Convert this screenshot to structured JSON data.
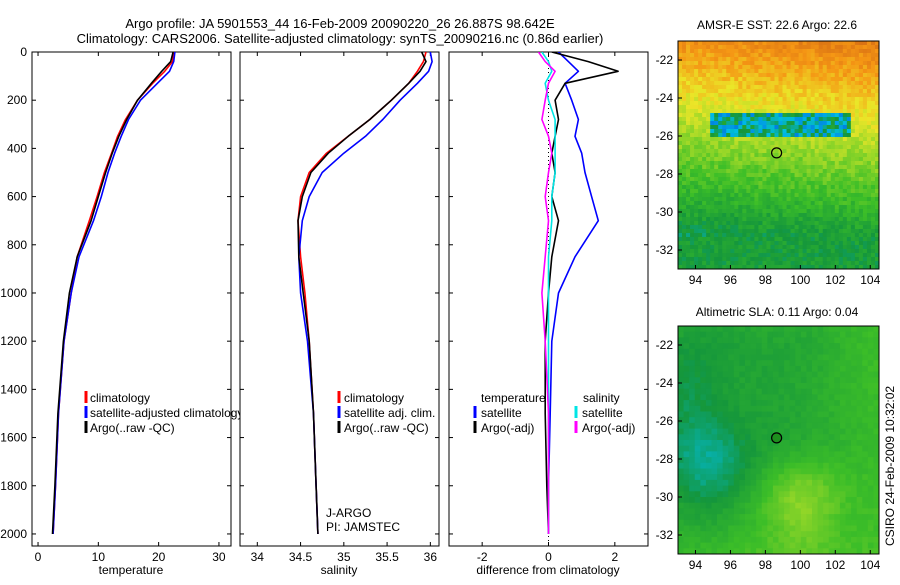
{
  "header": {
    "title_line1": "Argo profile: JA 5901553_44 16-Feb-2009 20090220_26 26.887S 98.642E",
    "title_line2": "Climatology: CARS2006. Satellite-adjusted climatology: synTS_20090216.nc (0.86d earlier)"
  },
  "colors": {
    "climatology": "#ff0000",
    "satellite": "#0000ff",
    "argo": "#000000",
    "salinity_satellite": "#00e5e5",
    "salinity_argo": "#ff00ff"
  },
  "chart_data": [
    {
      "id": "temperature",
      "type": "line",
      "xlabel": "temperature",
      "xlim": [
        -1,
        32
      ],
      "ylim": [
        2050,
        0
      ],
      "xticks": [
        "0",
        "10",
        "20",
        "30"
      ],
      "xtick_values": [
        0,
        10,
        20,
        30
      ],
      "yticks": [
        "0",
        "200",
        "400",
        "600",
        "800",
        "1000",
        "1200",
        "1400",
        "1600",
        "1800",
        "2000"
      ],
      "ytick_values": [
        0,
        200,
        400,
        600,
        800,
        1000,
        1200,
        1400,
        1600,
        1800,
        2000
      ],
      "legend": [
        "climatology",
        "satellite-adjusted climatology",
        "Argo(..raw -QC)"
      ],
      "series": [
        {
          "name": "climatology",
          "color": "#ff0000",
          "x": [
            22.5,
            22.3,
            21.0,
            19.0,
            16.5,
            14.5,
            13.2,
            12.2,
            11.0,
            9.8,
            8.5,
            6.5,
            5.5,
            4.3,
            3.4,
            2.9,
            2.5
          ],
          "y": [
            0,
            40,
            80,
            130,
            200,
            280,
            350,
            420,
            500,
            600,
            700,
            850,
            1000,
            1200,
            1500,
            1800,
            2000
          ]
        },
        {
          "name": "satellite",
          "color": "#0000ff",
          "x": [
            22.7,
            22.5,
            21.8,
            19.8,
            17.0,
            15.0,
            13.8,
            12.7,
            11.6,
            10.5,
            9.2,
            6.8,
            5.5,
            4.3,
            3.4,
            2.9,
            2.5
          ],
          "y": [
            0,
            40,
            80,
            130,
            200,
            280,
            350,
            420,
            500,
            600,
            700,
            850,
            1000,
            1200,
            1500,
            1800,
            2000
          ]
        },
        {
          "name": "argo",
          "color": "#000000",
          "x": [
            22.4,
            22.0,
            20.5,
            18.8,
            16.5,
            14.7,
            13.4,
            12.3,
            11.2,
            10.0,
            8.8,
            6.5,
            5.2,
            4.2,
            3.3,
            2.8,
            2.4
          ],
          "y": [
            0,
            40,
            80,
            130,
            200,
            280,
            350,
            420,
            500,
            600,
            700,
            850,
            1000,
            1200,
            1500,
            1800,
            2000
          ]
        }
      ]
    },
    {
      "id": "salinity",
      "type": "line",
      "xlabel": "salinity",
      "xlim": [
        33.8,
        36.1
      ],
      "ylim": [
        2050,
        0
      ],
      "xticks": [
        "34",
        "34.5",
        "35",
        "35.5",
        "36"
      ],
      "xtick_values": [
        34,
        34.5,
        35,
        35.5,
        36
      ],
      "legend": [
        "climatology",
        "satellite adj. clim.",
        "Argo(..raw -QC)"
      ],
      "annotation": [
        "J-ARGO",
        "PI: JAMSTEC"
      ],
      "series": [
        {
          "name": "climatology",
          "color": "#ff0000",
          "x": [
            35.95,
            35.92,
            35.85,
            35.75,
            35.55,
            35.3,
            35.05,
            34.8,
            34.6,
            34.5,
            34.47,
            34.5,
            34.55,
            34.6,
            34.65,
            34.68,
            34.7
          ],
          "y": [
            0,
            40,
            80,
            130,
            200,
            280,
            350,
            420,
            500,
            600,
            700,
            850,
            1000,
            1200,
            1500,
            1800,
            2000
          ]
        },
        {
          "name": "satellite",
          "color": "#0000ff",
          "x": [
            36.0,
            36.02,
            35.98,
            35.85,
            35.65,
            35.45,
            35.25,
            35.0,
            34.75,
            34.6,
            34.52,
            34.48,
            34.5,
            34.58,
            34.65,
            34.68,
            34.7
          ],
          "y": [
            0,
            40,
            80,
            130,
            200,
            280,
            350,
            420,
            500,
            600,
            700,
            850,
            1000,
            1200,
            1500,
            1800,
            2000
          ]
        },
        {
          "name": "argo",
          "color": "#000000",
          "x": [
            35.9,
            35.95,
            35.88,
            35.75,
            35.55,
            35.3,
            35.05,
            34.82,
            34.62,
            34.52,
            34.47,
            34.48,
            34.53,
            34.6,
            34.65,
            34.68,
            34.7
          ],
          "y": [
            0,
            40,
            80,
            130,
            200,
            280,
            350,
            420,
            500,
            600,
            700,
            850,
            1000,
            1200,
            1500,
            1800,
            2000
          ]
        }
      ]
    },
    {
      "id": "difference",
      "type": "line",
      "xlabel": "difference from climatology",
      "xlim": [
        -3,
        3
      ],
      "ylim": [
        2050,
        0
      ],
      "xticks": [
        "-2",
        "0",
        "2"
      ],
      "xtick_values": [
        -2,
        0,
        2
      ],
      "legend_left_title": "temperature",
      "legend_right_title": "salinity",
      "legend": [
        "satellite",
        "Argo(-adj)",
        "satellite",
        "Argo(-adj)"
      ],
      "series": [
        {
          "name": "temperature satellite",
          "color": "#0000ff",
          "x": [
            0.3,
            0.6,
            0.9,
            0.5,
            0.7,
            0.9,
            0.8,
            1.0,
            1.1,
            1.3,
            1.5,
            0.8,
            0.3,
            0.1,
            0.05,
            0.0,
            0.0
          ],
          "y": [
            0,
            40,
            80,
            130,
            200,
            280,
            350,
            420,
            500,
            600,
            700,
            850,
            1000,
            1200,
            1500,
            1800,
            2000
          ]
        },
        {
          "name": "temperature argo",
          "color": "#000000",
          "x": [
            0.1,
            1.2,
            2.1,
            0.5,
            0.2,
            0.3,
            0.2,
            0.1,
            0.2,
            0.1,
            0.3,
            0.1,
            0.0,
            -0.1,
            -0.1,
            -0.05,
            0.0
          ],
          "y": [
            0,
            40,
            80,
            130,
            200,
            280,
            350,
            420,
            500,
            600,
            700,
            850,
            1000,
            1200,
            1500,
            1800,
            2000
          ]
        },
        {
          "name": "salinity satellite",
          "color": "#00e5e5",
          "x": [
            -0.2,
            0.0,
            0.1,
            -0.1,
            0.0,
            0.2,
            0.2,
            0.2,
            0.2,
            0.1,
            0.1,
            0.0,
            0.0,
            0.0,
            0.0,
            0.0,
            0.0
          ],
          "y": [
            0,
            40,
            80,
            130,
            200,
            280,
            350,
            420,
            500,
            600,
            700,
            850,
            1000,
            1200,
            1500,
            1800,
            2000
          ]
        },
        {
          "name": "salinity argo",
          "color": "#ff00ff",
          "x": [
            -0.3,
            -0.1,
            0.2,
            0.0,
            -0.1,
            -0.2,
            0.0,
            0.1,
            0.0,
            -0.1,
            0.0,
            -0.1,
            -0.2,
            -0.1,
            0.0,
            0.0,
            0.0
          ],
          "y": [
            0,
            40,
            80,
            130,
            200,
            280,
            350,
            420,
            500,
            600,
            700,
            850,
            1000,
            1200,
            1500,
            1800,
            2000
          ]
        }
      ]
    },
    {
      "id": "sst_map",
      "type": "heatmap",
      "title": "AMSR-E SST: 22.6 Argo: 22.6",
      "xlim": [
        93,
        104.5
      ],
      "ylim": [
        -33,
        -21
      ],
      "xticks": [
        "94",
        "96",
        "98",
        "100",
        "102",
        "104"
      ],
      "xtick_values": [
        94,
        96,
        98,
        100,
        102,
        104
      ],
      "yticks": [
        "-22",
        "-24",
        "-26",
        "-28",
        "-30",
        "-32"
      ],
      "ytick_values": [
        -22,
        -24,
        -26,
        -28,
        -30,
        -32
      ],
      "marker": {
        "lon": 98.642,
        "lat": -26.887
      }
    },
    {
      "id": "sla_map",
      "type": "heatmap",
      "title": "Altimetric SLA: 0.11 Argo: 0.04",
      "xlim": [
        93,
        104.5
      ],
      "ylim": [
        -33,
        -21
      ],
      "xticks": [
        "94",
        "96",
        "98",
        "100",
        "102",
        "104"
      ],
      "xtick_values": [
        94,
        96,
        98,
        100,
        102,
        104
      ],
      "yticks": [
        "-22",
        "-24",
        "-26",
        "-28",
        "-30",
        "-32"
      ],
      "ytick_values": [
        -22,
        -24,
        -26,
        -28,
        -30,
        -32
      ],
      "marker": {
        "lon": 98.642,
        "lat": -26.887
      }
    }
  ],
  "side_label": "CSIRO 24-Feb-2009 10:32:02"
}
